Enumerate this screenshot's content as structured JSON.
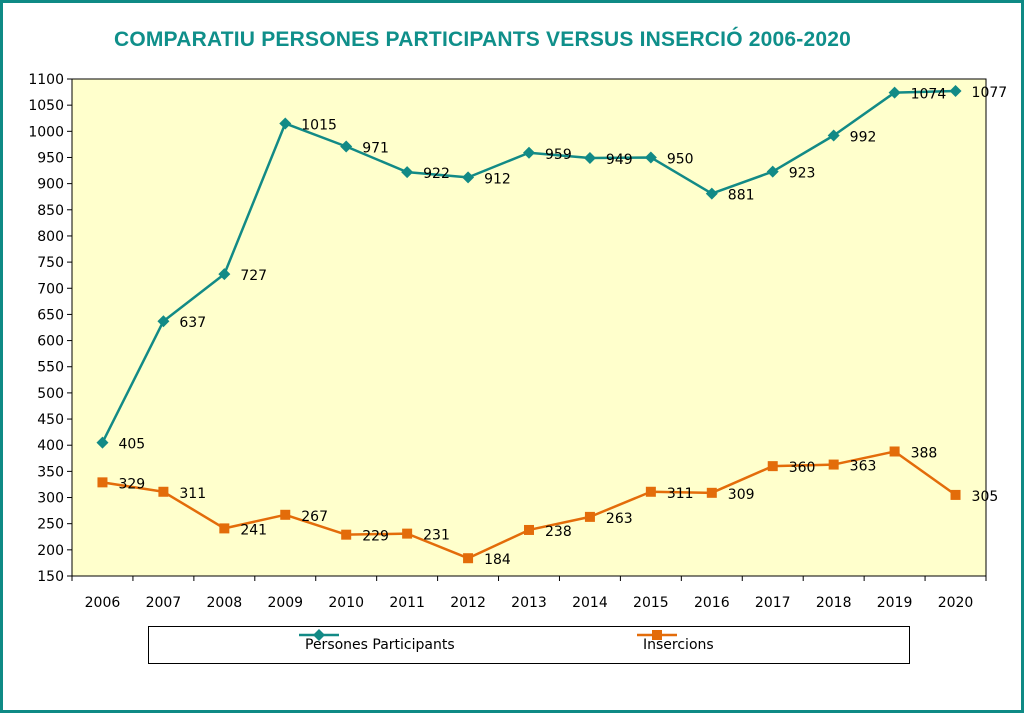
{
  "chart_data": {
    "type": "line",
    "title": "COMPARATIU PERSONES PARTICIPANTS VERSUS INSERCIÓ 2006-2020",
    "categories": [
      "2006",
      "2007",
      "2008",
      "2009",
      "2010",
      "2011",
      "2012",
      "2013",
      "2014",
      "2015",
      "2016",
      "2017",
      "2018",
      "2019",
      "2020"
    ],
    "ylim": [
      150,
      1100
    ],
    "yticks": [
      150,
      200,
      250,
      300,
      350,
      400,
      450,
      500,
      550,
      600,
      650,
      700,
      750,
      800,
      850,
      900,
      950,
      1000,
      1050,
      1100
    ],
    "grid": false,
    "legend_position": "bottom",
    "plot_background": "#ffffcc",
    "series": [
      {
        "name": "Persones Participants",
        "color": "#128a86",
        "marker": "diamond",
        "values": [
          405,
          637,
          727,
          1015,
          971,
          922,
          912,
          959,
          949,
          950,
          881,
          923,
          992,
          1074,
          1077
        ]
      },
      {
        "name": "Insercions",
        "color": "#e36c0a",
        "marker": "square",
        "values": [
          329,
          311,
          241,
          267,
          229,
          231,
          184,
          238,
          263,
          311,
          309,
          360,
          363,
          388,
          305
        ]
      }
    ]
  },
  "frame_color": "#0e8a85",
  "title_color": "#0f8f8a"
}
